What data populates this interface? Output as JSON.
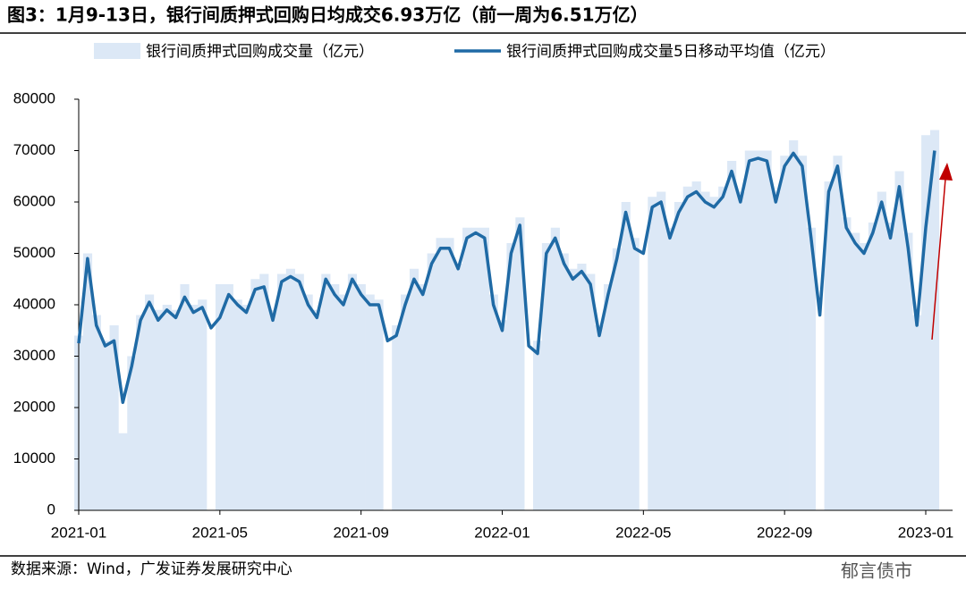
{
  "chart_data": {
    "type": "bar_line",
    "title": "图3：1月9-13日，银行间质押式回购日均成交6.93万亿（前一周为6.51万亿）",
    "source": "数据来源：Wind，广发证券发展研究中心",
    "watermark": "郁言债市",
    "categories": [
      "2021-01",
      null,
      null,
      null,
      null,
      null,
      null,
      null,
      null,
      null,
      null,
      null,
      null,
      null,
      null,
      null,
      "2021-05",
      null,
      null,
      null,
      null,
      null,
      null,
      null,
      null,
      null,
      null,
      null,
      null,
      null,
      null,
      null,
      "2021-09",
      null,
      null,
      null,
      null,
      null,
      null,
      null,
      null,
      null,
      null,
      null,
      null,
      null,
      null,
      null,
      "2022-01",
      null,
      null,
      null,
      null,
      null,
      null,
      null,
      null,
      null,
      null,
      null,
      null,
      null,
      null,
      null,
      "2022-05",
      null,
      null,
      null,
      null,
      null,
      null,
      null,
      null,
      null,
      null,
      null,
      null,
      null,
      null,
      null,
      "2022-09",
      null,
      null,
      null,
      null,
      null,
      null,
      null,
      null,
      null,
      null,
      null,
      null,
      null,
      null,
      null,
      "2023-01",
      null
    ],
    "series": [
      {
        "name": "银行间质押式回购成交量（亿元）",
        "color": "#dce8f6",
        "kind": "bar",
        "values": [
          34000,
          50000,
          38000,
          33000,
          36000,
          15000,
          30000,
          38000,
          42000,
          39000,
          40000,
          39000,
          44000,
          40000,
          41000,
          0,
          44000,
          44000,
          41000,
          40000,
          45000,
          46000,
          39000,
          46000,
          47000,
          46000,
          42000,
          39000,
          46000,
          44000,
          42000,
          46000,
          44000,
          42000,
          41000,
          0,
          36000,
          42000,
          47000,
          44000,
          50000,
          53000,
          53000,
          48000,
          55000,
          55000,
          55000,
          42000,
          37000,
          52000,
          57000,
          0,
          33000,
          52000,
          55000,
          50000,
          47000,
          48000,
          46000,
          36000,
          44000,
          51000,
          60000,
          53000,
          0,
          61000,
          62000,
          55000,
          60000,
          63000,
          64000,
          62000,
          61000,
          63000,
          68000,
          62000,
          70000,
          70000,
          70000,
          62000,
          69000,
          72000,
          69000,
          55000,
          0,
          64000,
          69000,
          57000,
          54000,
          52000,
          56000,
          62000,
          56000,
          66000,
          54000,
          38000,
          73000,
          74000
        ]
      },
      {
        "name": "银行间质押式回购成交量5日移动平均值（亿元）",
        "color": "#1f6aa5",
        "kind": "line",
        "values": [
          32500,
          49000,
          36000,
          32000,
          33000,
          21000,
          28000,
          37000,
          40500,
          37000,
          39000,
          37500,
          41500,
          38500,
          39500,
          35500,
          37500,
          42000,
          40000,
          38500,
          43000,
          43500,
          37000,
          44500,
          45500,
          44500,
          40000,
          37500,
          45000,
          42000,
          40000,
          45000,
          42000,
          40000,
          40000,
          33000,
          34000,
          40000,
          45000,
          42000,
          48000,
          51000,
          51000,
          47000,
          53000,
          54000,
          53000,
          40000,
          35000,
          50000,
          55500,
          32000,
          30500,
          50000,
          53000,
          48000,
          45000,
          46500,
          44000,
          34000,
          42000,
          49000,
          58000,
          51000,
          50000,
          59000,
          60000,
          53000,
          58000,
          61000,
          62000,
          60000,
          59000,
          61000,
          66000,
          60000,
          68000,
          68500,
          68000,
          60000,
          67000,
          69500,
          67000,
          53000,
          38000,
          62000,
          67000,
          55000,
          52000,
          50000,
          54000,
          60000,
          53000,
          63000,
          51000,
          36000,
          55000,
          70000
        ]
      }
    ],
    "ylim": [
      0,
      80000
    ],
    "yticks": [
      0,
      10000,
      20000,
      30000,
      40000,
      50000,
      60000,
      70000,
      80000
    ]
  }
}
